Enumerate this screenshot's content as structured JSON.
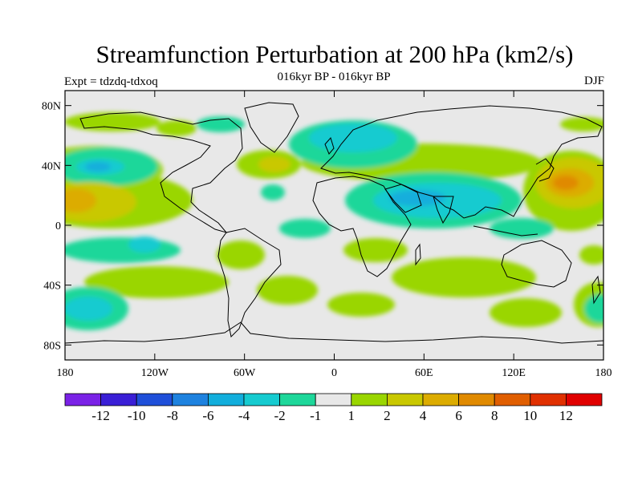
{
  "title": "Streamfunction Perturbation at 200 hPa (km2/s)",
  "subtitle": "016kyr BP - 016kyr BP",
  "experiment": "Expt = tdzdq-tdxoq",
  "season": "DJF",
  "lat_ticks": [
    "80N",
    "40N",
    "0",
    "40S",
    "80S"
  ],
  "lat_values": [
    80,
    40,
    0,
    -40,
    -80
  ],
  "lon_ticks": [
    "180",
    "120W",
    "60W",
    "0",
    "60E",
    "120E",
    "180"
  ],
  "lon_values": [
    -180,
    -120,
    -60,
    0,
    60,
    120,
    180
  ],
  "colorbar": {
    "labels": [
      "-12",
      "-10",
      "-8",
      "-6",
      "-4",
      "-2",
      "-1",
      "1",
      "2",
      "4",
      "6",
      "8",
      "10",
      "12"
    ],
    "colors": [
      "#7a22e6",
      "#3a1fd6",
      "#1f4fd9",
      "#1e82df",
      "#12aedc",
      "#16cbd0",
      "#1ed79a",
      "#e8e8e8",
      "#9ad600",
      "#c9c800",
      "#dcac00",
      "#e08a00",
      "#e05e00",
      "#e03000",
      "#e00000"
    ]
  },
  "chart_data": {
    "type": "contour map",
    "variable": "200 hPa streamfunction perturbation",
    "units": "km2/s",
    "projection": "cylindrical equidistant",
    "lon_range": [
      -180,
      180
    ],
    "lat_range": [
      -90,
      90
    ],
    "levels": [
      -12,
      -10,
      -8,
      -6,
      -4,
      -2,
      -1,
      1,
      2,
      4,
      6,
      8,
      10,
      12
    ],
    "features": [
      {
        "name": "north-pacific-low",
        "lon": -160,
        "lat": 38,
        "value": -4
      },
      {
        "name": "north-atlantic-low",
        "lon": 20,
        "lat": 60,
        "value": -2
      },
      {
        "name": "asia-low",
        "lon": 55,
        "lat": 18,
        "value": -4
      },
      {
        "name": "east-pacific-high",
        "lon": -170,
        "lat": 18,
        "value": 4
      },
      {
        "name": "west-pacific-high",
        "lon": 160,
        "lat": 25,
        "value": 6
      },
      {
        "name": "atlantic-high",
        "lon": -40,
        "lat": 38,
        "value": 4
      },
      {
        "name": "south-pacific-low",
        "lon": -160,
        "lat": -50,
        "value": -4
      }
    ]
  }
}
